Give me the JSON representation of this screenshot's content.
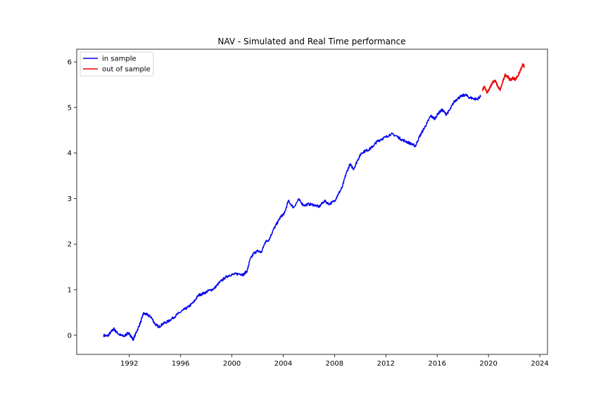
{
  "chart_data": {
    "type": "line",
    "title": "NAV - Simulated and Real Time performance",
    "xlabel": "",
    "ylabel": "",
    "xlim": [
      1987.9,
      2024.6
    ],
    "ylim": [
      -0.42,
      6.28
    ],
    "x_ticks": [
      1992,
      1996,
      2000,
      2004,
      2008,
      2012,
      2016,
      2020,
      2024
    ],
    "y_ticks": [
      0,
      1,
      2,
      3,
      4,
      5,
      6
    ],
    "grid": false,
    "legend_position": "top-left",
    "series": [
      {
        "name": "in sample",
        "color": "#0000ee",
        "x": [
          1990.0,
          1990.3,
          1990.6,
          1990.8,
          1991.0,
          1991.3,
          1991.6,
          1991.9,
          1992.1,
          1992.3,
          1992.6,
          1992.9,
          1993.1,
          1993.4,
          1993.7,
          1994.0,
          1994.3,
          1994.6,
          1995.0,
          1995.4,
          1995.8,
          1996.2,
          1996.6,
          1997.0,
          1997.4,
          1997.8,
          1998.2,
          1998.6,
          1999.0,
          1999.4,
          1999.8,
          2000.2,
          2000.6,
          2000.9,
          2001.2,
          2001.4,
          2001.7,
          2002.0,
          2002.3,
          2002.6,
          2002.9,
          2003.2,
          2003.5,
          2003.8,
          2004.1,
          2004.4,
          2004.8,
          2005.2,
          2005.6,
          2006.0,
          2006.4,
          2006.8,
          2007.2,
          2007.6,
          2008.0,
          2008.3,
          2008.6,
          2008.9,
          2009.2,
          2009.5,
          2009.8,
          2010.1,
          2010.4,
          2010.7,
          2011.0,
          2011.3,
          2011.6,
          2012.0,
          2012.4,
          2012.8,
          2013.2,
          2013.6,
          2014.0,
          2014.3,
          2014.6,
          2014.9,
          2015.2,
          2015.5,
          2015.8,
          2016.1,
          2016.4,
          2016.7,
          2017.0,
          2017.3,
          2017.6,
          2017.9,
          2018.2,
          2018.5,
          2018.8,
          2019.1,
          2019.4
        ],
        "values": [
          0.0,
          -0.02,
          0.08,
          0.14,
          0.07,
          0.0,
          -0.02,
          0.05,
          0.0,
          -0.1,
          0.1,
          0.3,
          0.48,
          0.45,
          0.4,
          0.25,
          0.18,
          0.25,
          0.3,
          0.38,
          0.47,
          0.55,
          0.62,
          0.72,
          0.88,
          0.92,
          0.98,
          1.02,
          1.15,
          1.25,
          1.32,
          1.34,
          1.35,
          1.33,
          1.42,
          1.65,
          1.8,
          1.85,
          1.82,
          2.05,
          2.1,
          2.3,
          2.45,
          2.6,
          2.68,
          2.95,
          2.8,
          2.98,
          2.85,
          2.88,
          2.86,
          2.82,
          2.95,
          2.88,
          2.95,
          3.1,
          3.25,
          3.55,
          3.75,
          3.65,
          3.85,
          4.0,
          4.05,
          4.08,
          4.15,
          4.25,
          4.3,
          4.35,
          4.42,
          4.38,
          4.3,
          4.25,
          4.2,
          4.15,
          4.35,
          4.5,
          4.65,
          4.82,
          4.75,
          4.88,
          4.95,
          4.85,
          4.95,
          5.12,
          5.2,
          5.25,
          5.28,
          5.22,
          5.2,
          5.18,
          5.25
        ]
      },
      {
        "name": "out of sample",
        "color": "#ee0000",
        "x": [
          2019.5,
          2019.7,
          2019.9,
          2020.1,
          2020.3,
          2020.5,
          2020.7,
          2020.9,
          2021.1,
          2021.3,
          2021.5,
          2021.7,
          2021.9,
          2022.1,
          2022.3,
          2022.5,
          2022.7,
          2022.8
        ],
        "values": [
          5.38,
          5.45,
          5.32,
          5.42,
          5.55,
          5.6,
          5.48,
          5.38,
          5.55,
          5.72,
          5.68,
          5.6,
          5.65,
          5.62,
          5.7,
          5.82,
          5.95,
          5.88
        ]
      }
    ]
  }
}
